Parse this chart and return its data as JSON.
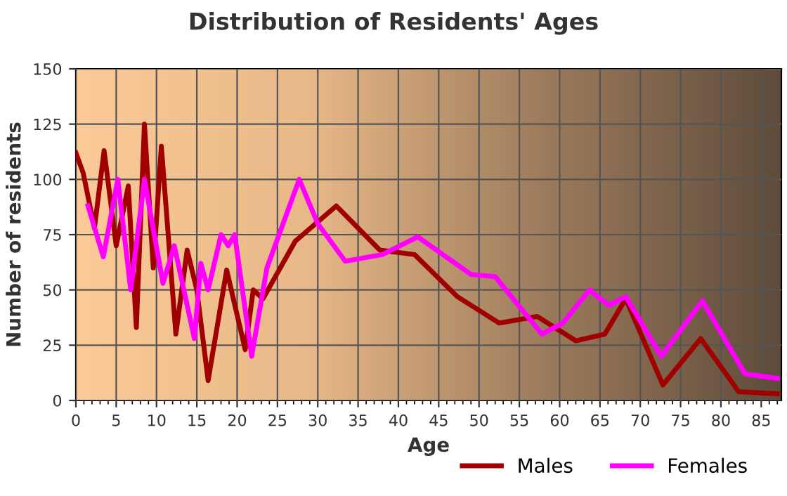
{
  "chart_data": {
    "type": "line",
    "title": "Distribution of Residents' Ages",
    "xlabel": "Age",
    "ylabel": "Number of residents",
    "xlim": [
      0,
      87.5
    ],
    "xticks": [
      0,
      5,
      10,
      15,
      20,
      25,
      30,
      35,
      40,
      45,
      50,
      55,
      60,
      65,
      70,
      75,
      80,
      85
    ],
    "ylim": [
      0,
      150
    ],
    "yticks": [
      0,
      25,
      50,
      75,
      100,
      125,
      150
    ],
    "grid": true,
    "legend": "bottom",
    "line_style": "solid",
    "series": [
      {
        "name": "Males",
        "color": "#a00000",
        "x": [
          0,
          0.9,
          2.3,
          3.5,
          5,
          6.5,
          7.5,
          8.5,
          9.6,
          10.6,
          12.4,
          13.8,
          15,
          16.4,
          18.7,
          21,
          22,
          23.2,
          27.2,
          32.3,
          37.7,
          42,
          47.3,
          52.5,
          57.2,
          62,
          65.6,
          68.2,
          72.8,
          77.5,
          82.2,
          87
        ],
        "values": [
          112,
          103,
          78,
          113,
          70,
          97,
          33,
          125,
          60,
          115,
          30,
          68,
          50,
          9,
          59,
          23,
          50,
          46,
          72,
          88,
          68,
          66,
          47,
          35,
          38,
          27,
          30,
          46,
          7,
          28,
          4,
          3
        ]
      },
      {
        "name": "Females",
        "color": "#ff00ff",
        "x": [
          1.5,
          3.4,
          5.2,
          6.8,
          8.5,
          10.8,
          12.2,
          14.7,
          15.5,
          16.4,
          18,
          18.9,
          19.7,
          21.8,
          23.7,
          27.7,
          30,
          33.4,
          38,
          42.4,
          49,
          52,
          57.8,
          60.4,
          63.7,
          66.1,
          68.2,
          72.6,
          77.7,
          83,
          87
        ],
        "values": [
          88,
          65,
          100,
          50,
          100,
          53,
          70,
          28,
          62,
          50,
          75,
          70,
          75,
          20,
          60,
          100,
          80,
          63,
          66,
          74,
          57,
          56,
          30,
          35,
          50,
          43,
          47,
          20,
          45,
          12,
          10
        ]
      }
    ]
  }
}
